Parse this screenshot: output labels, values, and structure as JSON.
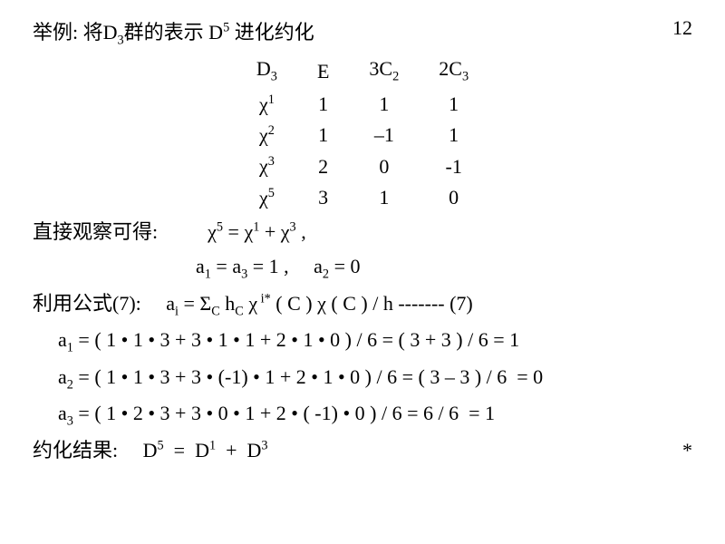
{
  "title": "举例: 将D₃群的表示 D⁵ 进化约化",
  "page_number": "12",
  "table": {
    "headers": [
      "D3",
      "E",
      "3C2",
      "2C3"
    ],
    "rows": [
      {
        "label": "chi1",
        "E": "1",
        "C2": "1",
        "C3": "1"
      },
      {
        "label": "chi2",
        "E": "1",
        "C2": "–1",
        "C3": "1"
      },
      {
        "label": "chi3",
        "E": "2",
        "C2": "0",
        "C3": "-1"
      },
      {
        "label": "chi5",
        "E": "3",
        "C2": "1",
        "C3": "0"
      }
    ]
  },
  "obs_label": "直接观察可得:",
  "obs_eq": "χ⁵ = χ¹ + χ³ ,",
  "coeff_eq": "a₁ = a₃ = 1 ,     a₂ = 0",
  "formula_label": "利用公式(7):",
  "formula_eq": "aᵢ = Σc hc χⁱ*( C ) χ ( C ) / h ------- (7)",
  "calc": {
    "a1": "a₁ = ( 1 • 1 • 3 + 3 • 1 • 1 + 2 • 1 • 0 ) / 6 = ( 3 + 3 ) / 6 = 1",
    "a2": "a₂ = ( 1 • 1 • 3 + 3 • (-1) • 1 + 2 • 1 • 0 ) / 6 = ( 3 – 3 ) / 6  = 0",
    "a3": "a₃ = ( 1 • 2 • 3 + 3 • 0 • 1 + 2 • ( -1) • 0 ) / 6 = 6 / 6  = 1"
  },
  "result_label": "约化结果:",
  "result_eq": "D⁵  =  D¹  +  D³",
  "end_mark": "*",
  "style": {
    "font_size_pt": 22,
    "bg_color": "#ffffff",
    "text_color": "#000000"
  }
}
